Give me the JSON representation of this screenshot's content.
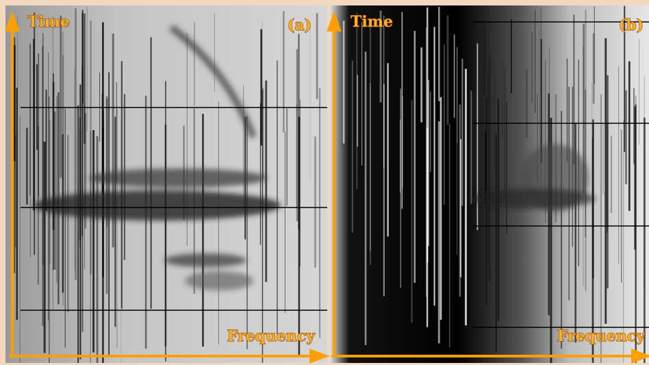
{
  "panels": [
    {
      "label": "(a)",
      "y_axis": "Time",
      "x_axis": "Frequency"
    },
    {
      "label": "(b)",
      "y_axis": "Time",
      "x_axis": "Frequency"
    }
  ]
}
